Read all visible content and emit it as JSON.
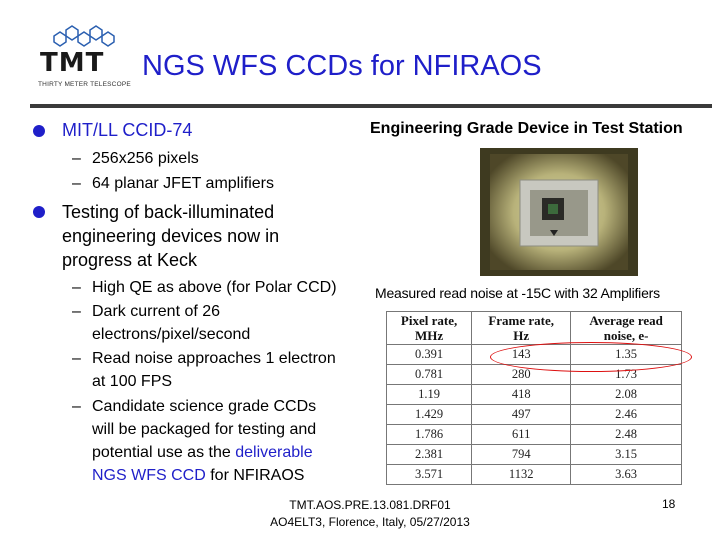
{
  "logo": {
    "text": "TMT",
    "subtext": "THIRTY METER TELESCOPE"
  },
  "title": "NGS WFS CCDs for NFIRAOS",
  "left": {
    "bullet1": "MIT/LL CCID-74",
    "sub1": [
      "256x256 pixels",
      "64 planar JFET amplifiers"
    ],
    "bullet2_lines": [
      "Testing of back-illuminated",
      "engineering devices now in",
      "progress at Keck"
    ],
    "sub2a": "High QE as above (for Polar CCD)",
    "sub2b_lines": [
      "Dark current of 26",
      "electrons/pixel/second"
    ],
    "sub2c_lines": [
      "Read noise approaches 1 electron",
      "at 100 FPS"
    ],
    "sub2d_lines": [
      "Candidate science grade CCDs",
      "will be packaged for testing and"
    ],
    "sub2d_line3a": "potential use as the ",
    "sub2d_line3b": "deliverable",
    "sub2d_line4a": "NGS WFS CCD",
    "sub2d_line4b": " for NFIRAOS"
  },
  "right": {
    "caption1": "Engineering Grade Device in Test Station",
    "caption2": "Measured read noise at -15C with 32 Amplifiers"
  },
  "table": {
    "headers": [
      [
        "Pixel rate,",
        "MHz"
      ],
      [
        "Frame rate,",
        "Hz"
      ],
      [
        "Average read",
        "noise, e-"
      ]
    ],
    "rows": [
      [
        "0.391",
        "143",
        "1.35"
      ],
      [
        "0.781",
        "280",
        "1.73"
      ],
      [
        "1.19",
        "418",
        "2.08"
      ],
      [
        "1.429",
        "497",
        "2.46"
      ],
      [
        "1.786",
        "611",
        "2.48"
      ],
      [
        "2.381",
        "794",
        "3.15"
      ],
      [
        "3.571",
        "1132",
        "3.63"
      ]
    ]
  },
  "footer": {
    "line1": "TMT.AOS.PRE.13.081.DRF01",
    "line2": "AO4ELT3, Florence, Italy, 05/27/2013",
    "page": "18"
  },
  "colors": {
    "accent": "#1f1fc9",
    "highlight": "#d11111"
  }
}
